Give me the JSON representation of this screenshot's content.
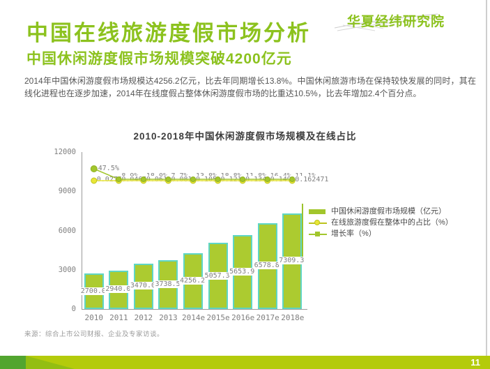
{
  "slide": {
    "logo_text": "华夏经纬研究院",
    "title": "中国在线旅游度假市场分析",
    "subtitle": "中国休闲游度假市场规模突破4200亿元",
    "body": "2014年中国休闲游度假市场规模达4256.2亿元，比去年同期增长13.8%。中国休闲旅游市场在保持较快发展的同时，其在线化进程也在逐步加速，2014年在线度假占整体休闲游度假市场的比重达10.5%，比去年增加2.4个百分点。",
    "source": "来源：综合上市公司财报、企业及专家访谈。",
    "page_number": "11"
  },
  "chart_data": {
    "type": "bar",
    "title": "2010-2018年中国休闲游度假市场规模及在线占比",
    "categories": [
      "2010",
      "2011",
      "2012",
      "2013",
      "2014e",
      "2015e",
      "2016e",
      "2017e",
      "2018e"
    ],
    "y_axis": {
      "ticks": [
        0,
        3000,
        6000,
        9000,
        12000
      ],
      "max": 12000
    },
    "grid": false,
    "legend_position": "right",
    "series": [
      {
        "name": "中国休闲游度假市场规模（亿元）",
        "type": "bar",
        "values": [
          2700.0,
          2940.0,
          3470.0,
          3738.5,
          4256.2,
          5057.3,
          5653.9,
          6578.8,
          7309.3
        ],
        "labels": [
          "2700.0",
          "2940.0",
          "3470.0",
          "3738.5",
          "4256.2",
          "5057.3",
          "5653.9",
          "6578.8",
          "7309.3"
        ]
      },
      {
        "name": "在线旅游度假在整体中的占比（%）",
        "type": "line",
        "values": [
          0.0276,
          0.0465,
          0.061,
          0.081,
          0.105,
          0.121,
          0.134,
          0.149,
          0.162471
        ],
        "labels": [
          "0.0276",
          "0.0465",
          "0.061",
          "0.081",
          "0.105",
          "0.121",
          "0.134",
          "0.149",
          "0.162471"
        ]
      },
      {
        "name": "增长率（%）",
        "type": "line",
        "values": [
          47.5,
          8.9,
          18.0,
          7.7,
          13.8,
          18.8,
          11.8,
          16.4,
          11.1
        ],
        "labels": [
          "47.5%",
          "8.9%",
          "18.0%",
          "7.7%",
          "13.8%",
          "18.8%",
          "11.8%",
          "16.4%",
          "11.1%"
        ]
      }
    ],
    "legend": [
      {
        "label": "中国休闲游度假市场规模（亿元）",
        "marker": "bar"
      },
      {
        "label": "在线旅游度假在整体中的占比（%）",
        "marker": "circle-line"
      },
      {
        "label": "增长率（%）",
        "marker": "square-line"
      }
    ]
  },
  "colors": {
    "accent_green": "#8cc21e",
    "bar_fill": "#accb30",
    "bar_edge": "#5fd6c4",
    "line_yellow": "#e9e637",
    "line_yellow_edge": "#bcc31c",
    "line_green": "#a2c62c",
    "text_gray": "#7f7f7f",
    "footer_bar": "#b4cb0b",
    "footer_dark_green": "#52a52f"
  }
}
